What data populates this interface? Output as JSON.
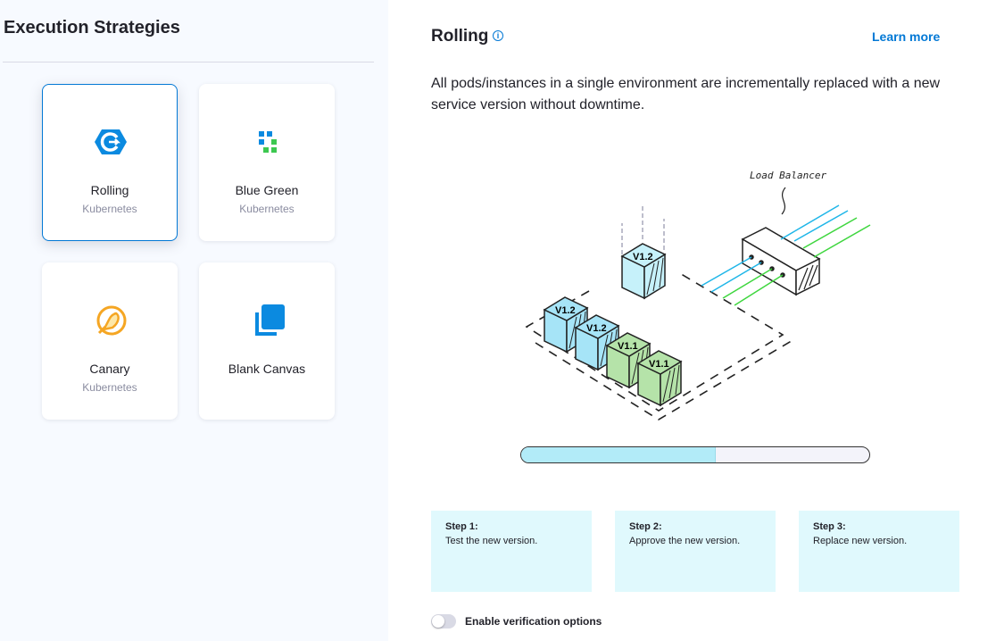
{
  "sidebar": {
    "title": "Execution Strategies",
    "cards": [
      {
        "name": "Rolling",
        "sub": "Kubernetes",
        "icon": "rolling-icon",
        "selected": true
      },
      {
        "name": "Blue Green",
        "sub": "Kubernetes",
        "icon": "blue-green-icon"
      },
      {
        "name": "Canary",
        "sub": "Kubernetes",
        "icon": "canary-icon"
      },
      {
        "name": "Blank Canvas",
        "sub": "",
        "icon": "blank-canvas-icon"
      }
    ]
  },
  "main": {
    "title": "Rolling",
    "info_icon": "info-icon",
    "learn_more": "Learn more",
    "description": "All pods/instances in a single environment are incrementally replaced with a new service version without downtime.",
    "diagram": {
      "load_balancer_label": "Load Balancer",
      "new_version": "V1.2",
      "old_version": "V1.1"
    },
    "progress_percent": 56,
    "steps": [
      {
        "title": "Step 1:",
        "text": "Test the new version."
      },
      {
        "title": "Step 2:",
        "text": "Approve the new version."
      },
      {
        "title": "Step 3:",
        "text": "Replace new version."
      }
    ],
    "verification_toggle": {
      "label": "Enable verification options",
      "enabled": false
    }
  },
  "colors": {
    "accent": "#0278d5",
    "new_pod": "#a6e4f7",
    "old_pod": "#b5e3a9",
    "step_bg": "#e0f9fd"
  }
}
